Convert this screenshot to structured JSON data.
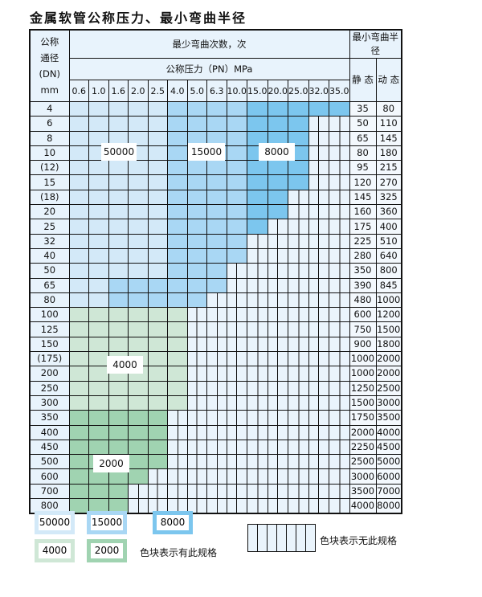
{
  "title": "金属软管公称压力、最小弯曲半径",
  "header": {
    "dn_label": [
      "公称",
      "通径",
      "(DN)",
      "mm"
    ],
    "bend_count": "最少弯曲次数，次",
    "pressure": "公称压力（PN）MPa",
    "min_radius": "最小弯曲半径",
    "static": "静 态",
    "dynamic": "动 态",
    "pressures": [
      "0.6",
      "1.0",
      "1.6",
      "2.0",
      "2.5",
      "4.0",
      "5.0",
      "6.3",
      "10.0",
      "15.0",
      "20.0",
      "25.0",
      "32.0",
      "35.0"
    ]
  },
  "colors": {
    "50000": "#d3e9f8",
    "15000": "#a9d7f4",
    "8000": "#7cc6ee",
    "4000": "#cfe7d6",
    "2000": "#a0d3b1",
    "none": "#eaf4fc"
  },
  "spec_codes": {
    "A": "50000",
    "B": "15000",
    "C": "8000",
    "D": "4000",
    "E": "2000",
    "N": "none"
  },
  "rows": [
    {
      "dn": "4",
      "static": "35",
      "dynamic": "80",
      "spec": "AAAAABBBBCCCCC"
    },
    {
      "dn": "6",
      "static": "50",
      "dynamic": "110",
      "spec": "AAAAABBBBCCCNN"
    },
    {
      "dn": "8",
      "static": "65",
      "dynamic": "145",
      "spec": "AAAAABBBBCCCNN"
    },
    {
      "dn": "10",
      "static": "80",
      "dynamic": "180",
      "spec": "AAAAABBBBCCCNN"
    },
    {
      "dn": "(12)",
      "static": "95",
      "dynamic": "215",
      "spec": "AAAAABBBBCCCNN"
    },
    {
      "dn": "15",
      "static": "120",
      "dynamic": "270",
      "spec": "AAAAABBBBCCCNN"
    },
    {
      "dn": "(18)",
      "static": "145",
      "dynamic": "325",
      "spec": "AAAAABBBBCCNNN"
    },
    {
      "dn": "20",
      "static": "160",
      "dynamic": "360",
      "spec": "AAAAABBBBCCNNN"
    },
    {
      "dn": "25",
      "static": "175",
      "dynamic": "400",
      "spec": "AAAAABBBBCNNNN"
    },
    {
      "dn": "32",
      "static": "225",
      "dynamic": "510",
      "spec": "AAAAABBBBNNNNN"
    },
    {
      "dn": "40",
      "static": "280",
      "dynamic": "640",
      "spec": "AAAAABBBBNNNNN"
    },
    {
      "dn": "50",
      "static": "350",
      "dynamic": "800",
      "spec": "AAAAABBBNNNNNN"
    },
    {
      "dn": "65",
      "static": "390",
      "dynamic": "845",
      "spec": "AABBBBBBNNNNNN"
    },
    {
      "dn": "80",
      "static": "480",
      "dynamic": "1000",
      "spec": "AABBBBBNNNNNNN"
    },
    {
      "dn": "100",
      "static": "600",
      "dynamic": "1200",
      "spec": "DDDDDDNNNNNNNN"
    },
    {
      "dn": "125",
      "static": "750",
      "dynamic": "1500",
      "spec": "DDDDDDNNNNNNNN"
    },
    {
      "dn": "150",
      "static": "900",
      "dynamic": "1800",
      "spec": "DDDDDDNNNNNNNN"
    },
    {
      "dn": "(175)",
      "static": "1000",
      "dynamic": "2000",
      "spec": "DDDDDDNNNNNNNN"
    },
    {
      "dn": "200",
      "static": "1000",
      "dynamic": "2000",
      "spec": "DDDDDDNNNNNNNN"
    },
    {
      "dn": "250",
      "static": "1250",
      "dynamic": "2500",
      "spec": "DDDDDDNNNNNNNN"
    },
    {
      "dn": "300",
      "static": "1500",
      "dynamic": "3000",
      "spec": "DDDDDDNNNNNNNN"
    },
    {
      "dn": "350",
      "static": "1750",
      "dynamic": "3500",
      "spec": "EEEEENNNNNNNNN"
    },
    {
      "dn": "400",
      "static": "2000",
      "dynamic": "4000",
      "spec": "EEEEENNNNNNNNN"
    },
    {
      "dn": "450",
      "static": "2250",
      "dynamic": "4500",
      "spec": "EEEEENNNNNNNNN"
    },
    {
      "dn": "500",
      "static": "2500",
      "dynamic": "5000",
      "spec": "EEEEENNNNNNNNN"
    },
    {
      "dn": "600",
      "static": "3000",
      "dynamic": "6000",
      "spec": "EEEENNNNNNNNNN"
    },
    {
      "dn": "700",
      "static": "3500",
      "dynamic": "7000",
      "spec": "EEENNNNNNNNNNN"
    },
    {
      "dn": "800",
      "static": "4000",
      "dynamic": "8000",
      "spec": "EEENNNNNNNNNNN"
    }
  ],
  "region_labels": [
    "50000",
    "15000",
    "8000",
    "4000",
    "2000"
  ],
  "legend": {
    "items": [
      "50000",
      "15000",
      "8000",
      "4000",
      "2000"
    ],
    "has_spec": "色块表示有此规格",
    "no_spec": "色块表示无此规格"
  }
}
